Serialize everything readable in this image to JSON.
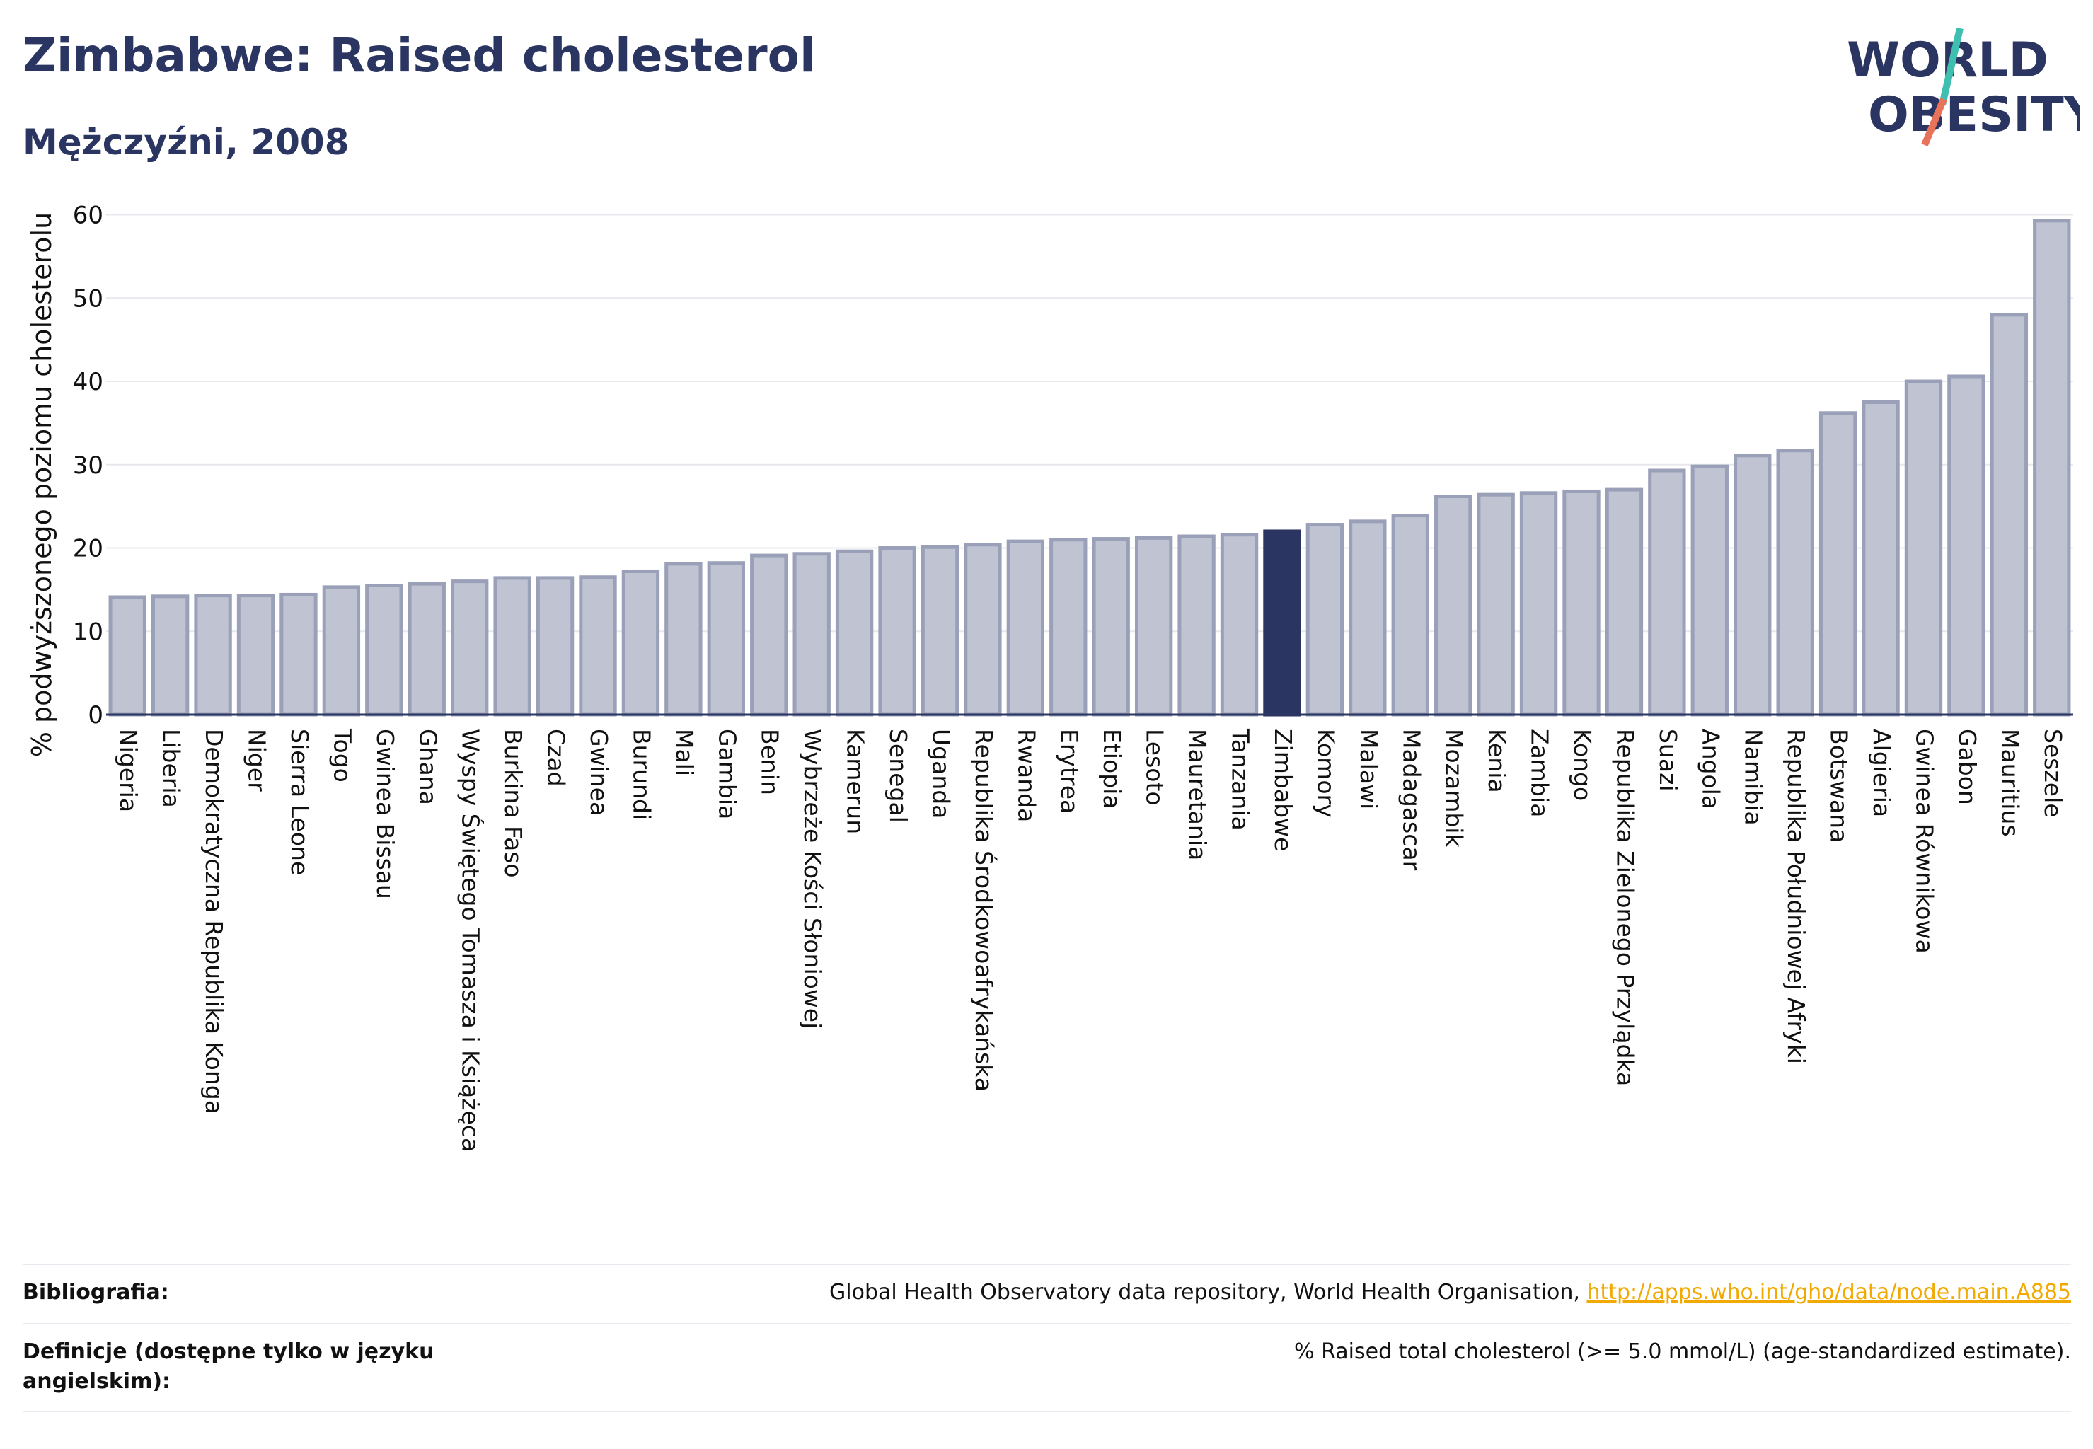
{
  "title": "Zimbabwe: Raised cholesterol",
  "subtitle": "Mężczyźni, 2008",
  "logo": {
    "line1": "WORLD",
    "line2": "OBESITY",
    "accent_colors": [
      "#3fbfb0",
      "#e8735a"
    ]
  },
  "colors": {
    "bar": "#bfc3d2",
    "bar_edge": "#9aa0b8",
    "highlight": "#2b3561",
    "grid": "#e6e8ee",
    "axis": "#2b3561",
    "link": "#f2a900"
  },
  "chart_data": {
    "type": "bar",
    "title": "Zimbabwe: Raised cholesterol",
    "subtitle": "Mężczyźni, 2008",
    "xlabel": "",
    "ylabel": "% podwyższonego poziomu cholesterolu",
    "ylim": [
      0,
      62
    ],
    "yticks": [
      0,
      10,
      20,
      30,
      40,
      50,
      60
    ],
    "grid": true,
    "highlight": "Zimbabwe",
    "categories": [
      "Nigeria",
      "Liberia",
      "Demokratyczna Republika Konga",
      "Niger",
      "Sierra Leone",
      "Togo",
      "Gwinea Bissau",
      "Ghana",
      "Wyspy Świętego Tomasza i Książęca",
      "Burkina Faso",
      "Czad",
      "Gwinea",
      "Burundi",
      "Mali",
      "Gambia",
      "Benin",
      "Wybrzeże Kości Słoniowej",
      "Kamerun",
      "Senegal",
      "Uganda",
      "Republika Środkowoafrykańska",
      "Rwanda",
      "Erytrea",
      "Etiopia",
      "Lesoto",
      "Mauretania",
      "Tanzania",
      "Zimbabwe",
      "Komory",
      "Malawi",
      "Madagascar",
      "Mozambik",
      "Kenia",
      "Zambia",
      "Kongo",
      "Republika Zielonego Przylądka",
      "Suazi",
      "Angola",
      "Namibia",
      "Republika Południowej Afryki",
      "Botswana",
      "Algieria",
      "Gwinea Równikowa",
      "Gabon",
      "Mauritius",
      "Seszele"
    ],
    "values": [
      14.1,
      14.2,
      14.3,
      14.3,
      14.4,
      15.3,
      15.5,
      15.7,
      16.0,
      16.4,
      16.4,
      16.5,
      17.2,
      18.1,
      18.2,
      19.1,
      19.3,
      19.6,
      20.0,
      20.1,
      20.4,
      20.8,
      21.0,
      21.1,
      21.2,
      21.4,
      21.6,
      22.0,
      22.8,
      23.2,
      23.9,
      26.2,
      26.4,
      26.6,
      26.8,
      27.0,
      29.3,
      29.8,
      31.1,
      31.7,
      36.2,
      37.5,
      40.0,
      40.6,
      48.0,
      59.3
    ]
  },
  "footer": {
    "bibliography_label": "Bibliografia:",
    "bibliography_text": "Global Health Observatory data repository, World Health Organisation, ",
    "bibliography_link": "http://apps.who.int/gho/data/node.main.A885",
    "definitions_label": "Definicje (dostępne tylko w języku angielskim):",
    "definitions_text": "% Raised total cholesterol (>= 5.0 mmol/L) (age-standardized estimate)."
  }
}
